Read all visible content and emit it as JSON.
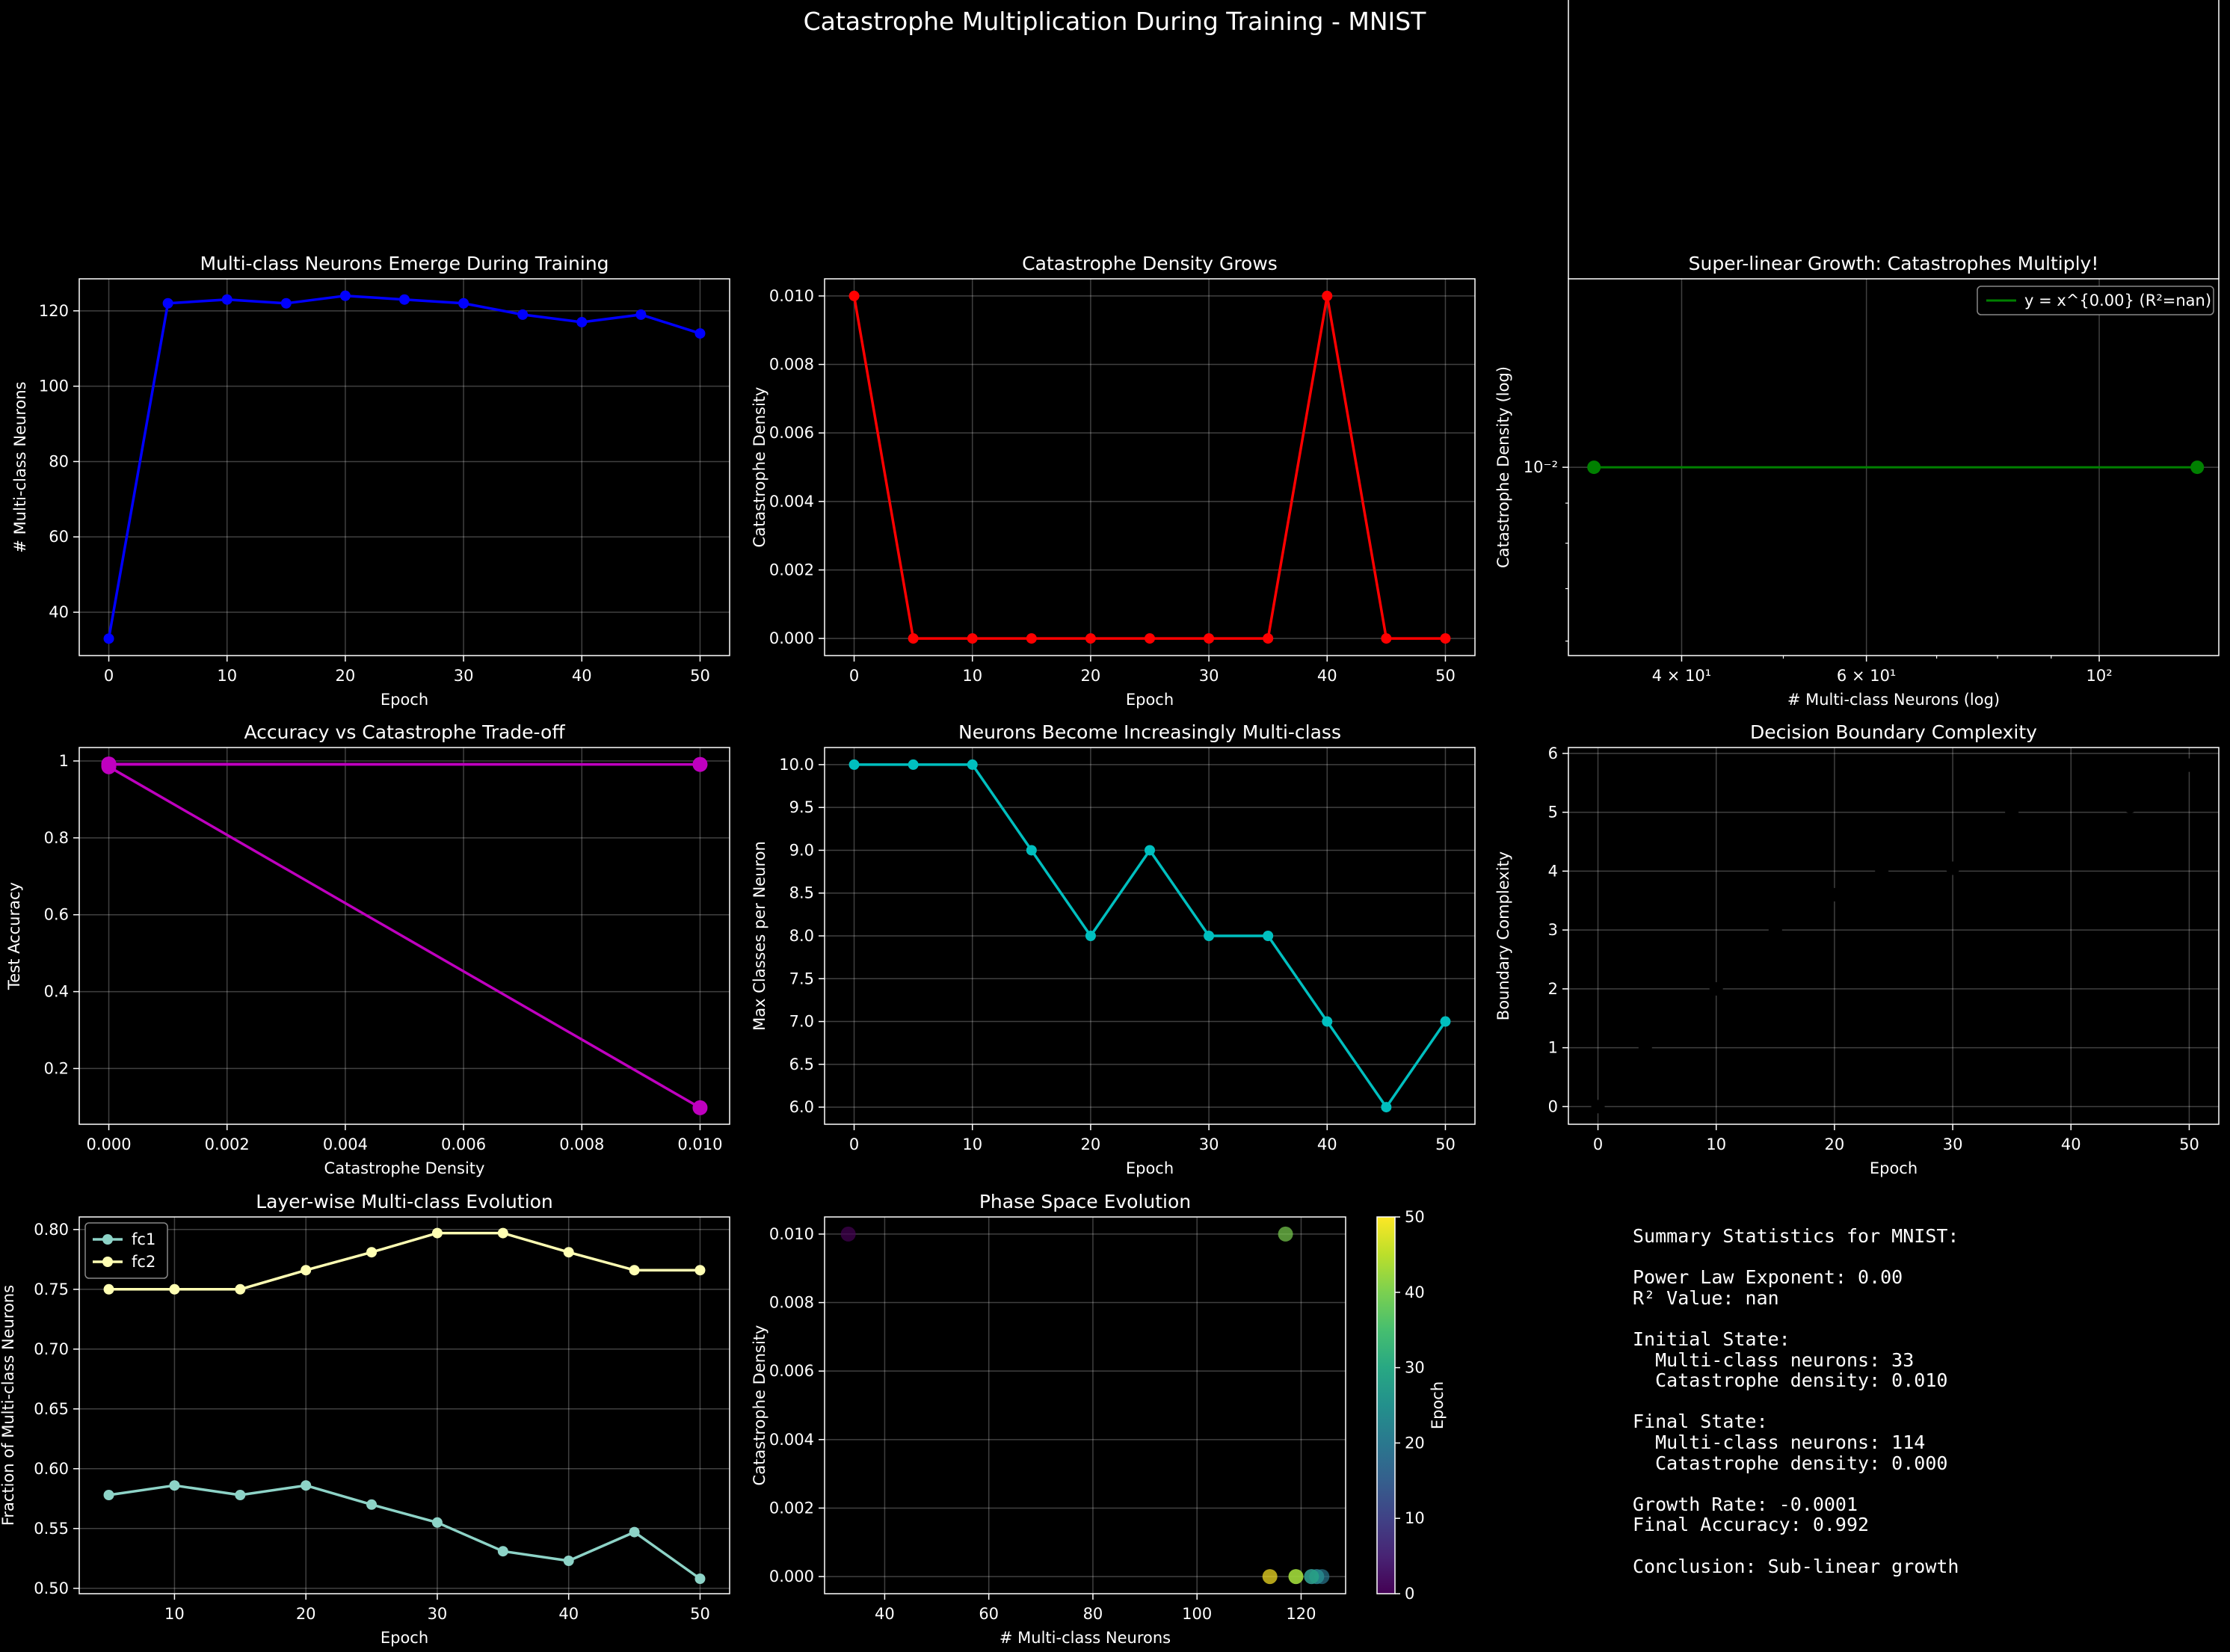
{
  "figure": {
    "title": "Catastrophe Multiplication During Training - MNIST"
  },
  "chart_data": [
    {
      "id": "p1",
      "type": "line",
      "title": "Multi-class Neurons Emerge During Training",
      "xlabel": "Epoch",
      "ylabel": "# Multi-class Neurons",
      "xlim": [
        -2.5,
        52.5
      ],
      "ylim": [
        28.5,
        128.5
      ],
      "xticks": [
        0,
        10,
        20,
        30,
        40,
        50
      ],
      "yticks": [
        40,
        60,
        80,
        100,
        120
      ],
      "grid": true,
      "series": [
        {
          "color": "#0000ff",
          "x": [
            0,
            5,
            10,
            15,
            20,
            25,
            30,
            35,
            40,
            45,
            50
          ],
          "y": [
            33,
            122,
            123,
            122,
            124,
            123,
            122,
            119,
            117,
            119,
            114
          ]
        }
      ]
    },
    {
      "id": "p2",
      "type": "line",
      "title": "Catastrophe Density Grows",
      "xlabel": "Epoch",
      "ylabel": "Catastrophe Density",
      "xlim": [
        -2.5,
        52.5
      ],
      "ylim": [
        -0.0005,
        0.0105
      ],
      "xticks": [
        0,
        10,
        20,
        30,
        40,
        50
      ],
      "yticks": [
        0.0,
        0.002,
        0.004,
        0.006,
        0.008,
        0.01
      ],
      "ytick_labels": [
        "0.000",
        "0.002",
        "0.004",
        "0.006",
        "0.008",
        "0.010"
      ],
      "grid": true,
      "series": [
        {
          "color": "#ff0000",
          "x": [
            0,
            5,
            10,
            15,
            20,
            25,
            30,
            35,
            40,
            45,
            50
          ],
          "y": [
            0.01,
            0,
            0,
            0,
            0,
            0,
            0,
            0,
            0.01,
            0,
            0
          ]
        }
      ]
    },
    {
      "id": "p3",
      "type": "scatter",
      "title": "Super-linear Growth: Catastrophes Multiply!",
      "xlabel": "# Multi-class Neurons (log)",
      "ylabel": "Catastrophe Density (log)",
      "xscale": "log",
      "yscale": "log",
      "xlim": [
        31.2,
        130.0
      ],
      "ylim": [
        0.00575,
        0.0174
      ],
      "xticks": [
        40,
        60,
        100
      ],
      "xtick_labels": [
        "4 × 10¹",
        "6 × 10¹",
        "10²"
      ],
      "yticks": [
        0.01
      ],
      "ytick_labels": [
        "10⁻²"
      ],
      "grid": true,
      "legend": {
        "position": "upper right",
        "entries": [
          "y = x^{0.00} (R²=nan)"
        ]
      },
      "series": [
        {
          "kind": "points",
          "color": "#008000",
          "x": [
            33,
            124
          ],
          "y": [
            0.01,
            0.01
          ]
        },
        {
          "kind": "line",
          "color": "#008000",
          "name": "y = x^{0.00} (R²=nan)",
          "x": [
            33,
            124
          ],
          "y": [
            0.01,
            0.01
          ]
        }
      ]
    },
    {
      "id": "p4",
      "type": "line",
      "title": "Accuracy vs Catastrophe Trade-off",
      "xlabel": "Catastrophe Density",
      "ylabel": "Test Accuracy",
      "xlim": [
        -0.0005,
        0.0105
      ],
      "ylim": [
        0.055,
        1.035
      ],
      "xticks": [
        0.0,
        0.002,
        0.004,
        0.006,
        0.008,
        0.01
      ],
      "xtick_labels": [
        "0.000",
        "0.002",
        "0.004",
        "0.006",
        "0.008",
        "0.010"
      ],
      "yticks": [
        0.2,
        0.4,
        0.6,
        0.8,
        1.0
      ],
      "grid": true,
      "series": [
        {
          "color": "#bf00bf",
          "x": [
            0.01,
            0,
            0,
            0,
            0,
            0,
            0,
            0,
            0.01,
            0,
            0
          ],
          "y": [
            0.098,
            0.985,
            0.988,
            0.989,
            0.99,
            0.99,
            0.991,
            0.991,
            0.991,
            0.992,
            0.992
          ]
        }
      ]
    },
    {
      "id": "p5",
      "type": "line",
      "title": "Neurons Become Increasingly Multi-class",
      "xlabel": "Epoch",
      "ylabel": "Max Classes per Neuron",
      "xlim": [
        -2.5,
        52.5
      ],
      "ylim": [
        5.8,
        10.2
      ],
      "xticks": [
        0,
        10,
        20,
        30,
        40,
        50
      ],
      "yticks": [
        6.0,
        6.5,
        7.0,
        7.5,
        8.0,
        8.5,
        9.0,
        9.5,
        10.0
      ],
      "ytick_labels": [
        "6.0",
        "6.5",
        "7.0",
        "7.5",
        "8.0",
        "8.5",
        "9.0",
        "9.5",
        "10.0"
      ],
      "grid": true,
      "series": [
        {
          "color": "#00bfbf",
          "x": [
            0,
            5,
            10,
            15,
            20,
            25,
            30,
            35,
            40,
            45,
            50
          ],
          "y": [
            10,
            10,
            10,
            9,
            8,
            9,
            8,
            8,
            7,
            6,
            7
          ]
        }
      ]
    },
    {
      "id": "p6",
      "type": "scatter",
      "title": "Decision Boundary Complexity",
      "xlabel": "Epoch",
      "ylabel": "Boundary Complexity",
      "xlim": [
        -2.5,
        52.5
      ],
      "ylim": [
        -0.3,
        6.1
      ],
      "xticks": [
        0,
        10,
        20,
        30,
        40,
        50
      ],
      "yticks": [
        0,
        1,
        2,
        3,
        4,
        5,
        6
      ],
      "grid": true,
      "series": [
        {
          "color": "#000000",
          "x": [
            0,
            4,
            10,
            15,
            20,
            24,
            30,
            35,
            41,
            45,
            50
          ],
          "y": [
            0,
            1,
            2,
            3,
            3.6,
            4,
            4.05,
            5,
            4.6,
            5.1,
            5.8
          ]
        }
      ]
    },
    {
      "id": "p7",
      "type": "line",
      "title": "Layer-wise Multi-class Evolution",
      "xlabel": "Epoch",
      "ylabel": "Fraction of Multi-class Neurons",
      "xlim": [
        2.75,
        52.25
      ],
      "ylim": [
        0.4955,
        0.8105
      ],
      "xticks": [
        10,
        20,
        30,
        40,
        50
      ],
      "yticks": [
        0.5,
        0.55,
        0.6,
        0.65,
        0.7,
        0.75,
        0.8
      ],
      "ytick_labels": [
        "0.50",
        "0.55",
        "0.60",
        "0.65",
        "0.70",
        "0.75",
        "0.80"
      ],
      "grid": true,
      "legend": {
        "position": "upper left"
      },
      "series": [
        {
          "name": "fc1",
          "color": "#8dd3c7",
          "x": [
            5,
            10,
            15,
            20,
            25,
            30,
            35,
            40,
            45,
            50
          ],
          "y": [
            0.578,
            0.586,
            0.578,
            0.586,
            0.57,
            0.555,
            0.531,
            0.523,
            0.547,
            0.508
          ]
        },
        {
          "name": "fc2",
          "color": "#ffffb3",
          "x": [
            5,
            10,
            15,
            20,
            25,
            30,
            35,
            40,
            45,
            50
          ],
          "y": [
            0.75,
            0.75,
            0.75,
            0.766,
            0.781,
            0.797,
            0.797,
            0.781,
            0.766,
            0.766
          ]
        }
      ]
    },
    {
      "id": "p8",
      "type": "scatter",
      "title": "Phase Space Evolution",
      "xlabel": "# Multi-class Neurons",
      "ylabel": "Catastrophe Density",
      "xlim": [
        28.45,
        128.55
      ],
      "ylim": [
        -0.0005,
        0.0105
      ],
      "xticks": [
        40,
        60,
        80,
        100,
        120
      ],
      "yticks": [
        0.0,
        0.002,
        0.004,
        0.006,
        0.008,
        0.01
      ],
      "ytick_labels": [
        "0.000",
        "0.002",
        "0.004",
        "0.006",
        "0.008",
        "0.010"
      ],
      "grid": true,
      "colorbar": {
        "label": "Epoch",
        "range": [
          0,
          50
        ],
        "ticks": [
          0,
          10,
          20,
          30,
          40,
          50
        ]
      },
      "series": [
        {
          "x": [
            33,
            122,
            123,
            122,
            124,
            123,
            122,
            119,
            117,
            119,
            114
          ],
          "y": [
            0.01,
            0,
            0,
            0,
            0,
            0,
            0,
            0,
            0.01,
            0,
            0
          ],
          "c": [
            0,
            5,
            10,
            15,
            20,
            25,
            30,
            35,
            40,
            45,
            50
          ]
        }
      ]
    }
  ],
  "summary": {
    "lines": [
      "Summary Statistics for MNIST:",
      "",
      "Power Law Exponent: 0.00",
      "R² Value: nan",
      "",
      "Initial State:",
      "  Multi-class neurons: 33",
      "  Catastrophe density: 0.010",
      "",
      "Final State:",
      "  Multi-class neurons: 114",
      "  Catastrophe density: 0.000",
      "",
      "Growth Rate: -0.0001",
      "Final Accuracy: 0.992",
      "",
      "Conclusion: Sub-linear growth"
    ]
  }
}
